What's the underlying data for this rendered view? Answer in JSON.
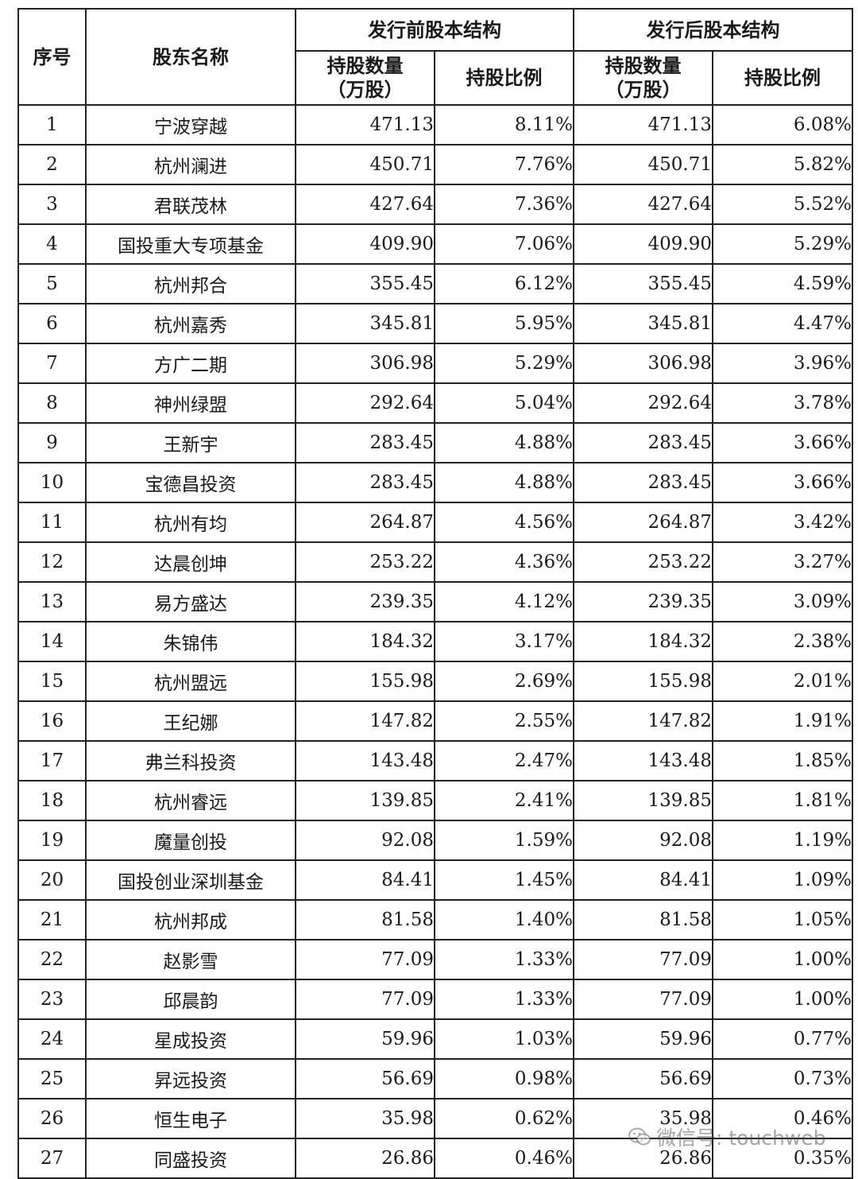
{
  "table": {
    "header": {
      "index": "序号",
      "name": "股东名称",
      "pre_group": "发行前股本结构",
      "post_group": "发行后股本结构",
      "shares_line1": "持股数量",
      "shares_line2": "（万股）",
      "ratio": "持股比例"
    },
    "rows": [
      {
        "no": "1",
        "name": "宁波穿越",
        "pre_shares": "471.13",
        "pre_ratio": "8.11%",
        "post_shares": "471.13",
        "post_ratio": "6.08%"
      },
      {
        "no": "2",
        "name": "杭州澜进",
        "pre_shares": "450.71",
        "pre_ratio": "7.76%",
        "post_shares": "450.71",
        "post_ratio": "5.82%"
      },
      {
        "no": "3",
        "name": "君联茂林",
        "pre_shares": "427.64",
        "pre_ratio": "7.36%",
        "post_shares": "427.64",
        "post_ratio": "5.52%"
      },
      {
        "no": "4",
        "name": "国投重大专项基金",
        "pre_shares": "409.90",
        "pre_ratio": "7.06%",
        "post_shares": "409.90",
        "post_ratio": "5.29%"
      },
      {
        "no": "5",
        "name": "杭州邦合",
        "pre_shares": "355.45",
        "pre_ratio": "6.12%",
        "post_shares": "355.45",
        "post_ratio": "4.59%"
      },
      {
        "no": "6",
        "name": "杭州嘉秀",
        "pre_shares": "345.81",
        "pre_ratio": "5.95%",
        "post_shares": "345.81",
        "post_ratio": "4.47%"
      },
      {
        "no": "7",
        "name": "方广二期",
        "pre_shares": "306.98",
        "pre_ratio": "5.29%",
        "post_shares": "306.98",
        "post_ratio": "3.96%"
      },
      {
        "no": "8",
        "name": "神州绿盟",
        "pre_shares": "292.64",
        "pre_ratio": "5.04%",
        "post_shares": "292.64",
        "post_ratio": "3.78%"
      },
      {
        "no": "9",
        "name": "王新宇",
        "pre_shares": "283.45",
        "pre_ratio": "4.88%",
        "post_shares": "283.45",
        "post_ratio": "3.66%"
      },
      {
        "no": "10",
        "name": "宝德昌投资",
        "pre_shares": "283.45",
        "pre_ratio": "4.88%",
        "post_shares": "283.45",
        "post_ratio": "3.66%"
      },
      {
        "no": "11",
        "name": "杭州有均",
        "pre_shares": "264.87",
        "pre_ratio": "4.56%",
        "post_shares": "264.87",
        "post_ratio": "3.42%"
      },
      {
        "no": "12",
        "name": "达晨创坤",
        "pre_shares": "253.22",
        "pre_ratio": "4.36%",
        "post_shares": "253.22",
        "post_ratio": "3.27%"
      },
      {
        "no": "13",
        "name": "易方盛达",
        "pre_shares": "239.35",
        "pre_ratio": "4.12%",
        "post_shares": "239.35",
        "post_ratio": "3.09%"
      },
      {
        "no": "14",
        "name": "朱锦伟",
        "pre_shares": "184.32",
        "pre_ratio": "3.17%",
        "post_shares": "184.32",
        "post_ratio": "2.38%"
      },
      {
        "no": "15",
        "name": "杭州盟远",
        "pre_shares": "155.98",
        "pre_ratio": "2.69%",
        "post_shares": "155.98",
        "post_ratio": "2.01%"
      },
      {
        "no": "16",
        "name": "王纪娜",
        "pre_shares": "147.82",
        "pre_ratio": "2.55%",
        "post_shares": "147.82",
        "post_ratio": "1.91%"
      },
      {
        "no": "17",
        "name": "弗兰科投资",
        "pre_shares": "143.48",
        "pre_ratio": "2.47%",
        "post_shares": "143.48",
        "post_ratio": "1.85%"
      },
      {
        "no": "18",
        "name": "杭州睿远",
        "pre_shares": "139.85",
        "pre_ratio": "2.41%",
        "post_shares": "139.85",
        "post_ratio": "1.81%"
      },
      {
        "no": "19",
        "name": "魔量创投",
        "pre_shares": "92.08",
        "pre_ratio": "1.59%",
        "post_shares": "92.08",
        "post_ratio": "1.19%"
      },
      {
        "no": "20",
        "name": "国投创业深圳基金",
        "pre_shares": "84.41",
        "pre_ratio": "1.45%",
        "post_shares": "84.41",
        "post_ratio": "1.09%"
      },
      {
        "no": "21",
        "name": "杭州邦成",
        "pre_shares": "81.58",
        "pre_ratio": "1.40%",
        "post_shares": "81.58",
        "post_ratio": "1.05%"
      },
      {
        "no": "22",
        "name": "赵影雪",
        "pre_shares": "77.09",
        "pre_ratio": "1.33%",
        "post_shares": "77.09",
        "post_ratio": "1.00%"
      },
      {
        "no": "23",
        "name": "邱晨韵",
        "pre_shares": "77.09",
        "pre_ratio": "1.33%",
        "post_shares": "77.09",
        "post_ratio": "1.00%"
      },
      {
        "no": "24",
        "name": "星成投资",
        "pre_shares": "59.96",
        "pre_ratio": "1.03%",
        "post_shares": "59.96",
        "post_ratio": "0.77%"
      },
      {
        "no": "25",
        "name": "昇远投资",
        "pre_shares": "56.69",
        "pre_ratio": "0.98%",
        "post_shares": "56.69",
        "post_ratio": "0.73%"
      },
      {
        "no": "26",
        "name": "恒生电子",
        "pre_shares": "35.98",
        "pre_ratio": "0.62%",
        "post_shares": "35.98",
        "post_ratio": "0.46%"
      },
      {
        "no": "27",
        "name": "同盛投资",
        "pre_shares": "26.86",
        "pre_ratio": "0.46%",
        "post_shares": "26.86",
        "post_ratio": "0.35%"
      }
    ]
  },
  "watermark": {
    "text": "微信号: touchweb",
    "icon": "wechat-icon"
  }
}
